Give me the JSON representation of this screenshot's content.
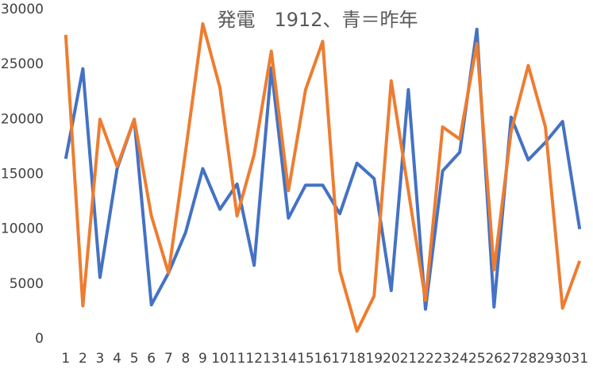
{
  "chart_data": {
    "type": "line",
    "title": "発電　1912、青＝昨年",
    "categories": [
      "1",
      "2",
      "3",
      "4",
      "5",
      "6",
      "7",
      "8",
      "9",
      "10",
      "11",
      "12",
      "13",
      "14",
      "15",
      "16",
      "17",
      "18",
      "19",
      "20",
      "21",
      "22",
      "23",
      "24",
      "25",
      "26",
      "27",
      "28",
      "29",
      "30",
      "31"
    ],
    "series": [
      {
        "color": "#4472c4",
        "values": [
          16400,
          24600,
          5600,
          15500,
          20000,
          3100,
          6000,
          9700,
          15500,
          11800,
          14100,
          6700,
          24700,
          11000,
          14000,
          14000,
          11400,
          16000,
          14600,
          4400,
          22700,
          2700,
          15300,
          17000,
          28200,
          2900,
          20200,
          16300,
          17900,
          19800,
          10000
        ]
      },
      {
        "color": "#ed7d31",
        "values": [
          27700,
          3000,
          20000,
          15700,
          20000,
          11200,
          6000,
          17100,
          28700,
          22900,
          11200,
          16800,
          26200,
          13500,
          22700,
          27100,
          6200,
          700,
          3900,
          23500,
          13500,
          3500,
          19300,
          18200,
          26900,
          6300,
          18900,
          24900,
          19300,
          2800,
          7100
        ]
      }
    ],
    "ylim": [
      0,
      30000
    ],
    "yticks": [
      0,
      5000,
      10000,
      15000,
      20000,
      25000,
      30000
    ],
    "grid": false
  }
}
